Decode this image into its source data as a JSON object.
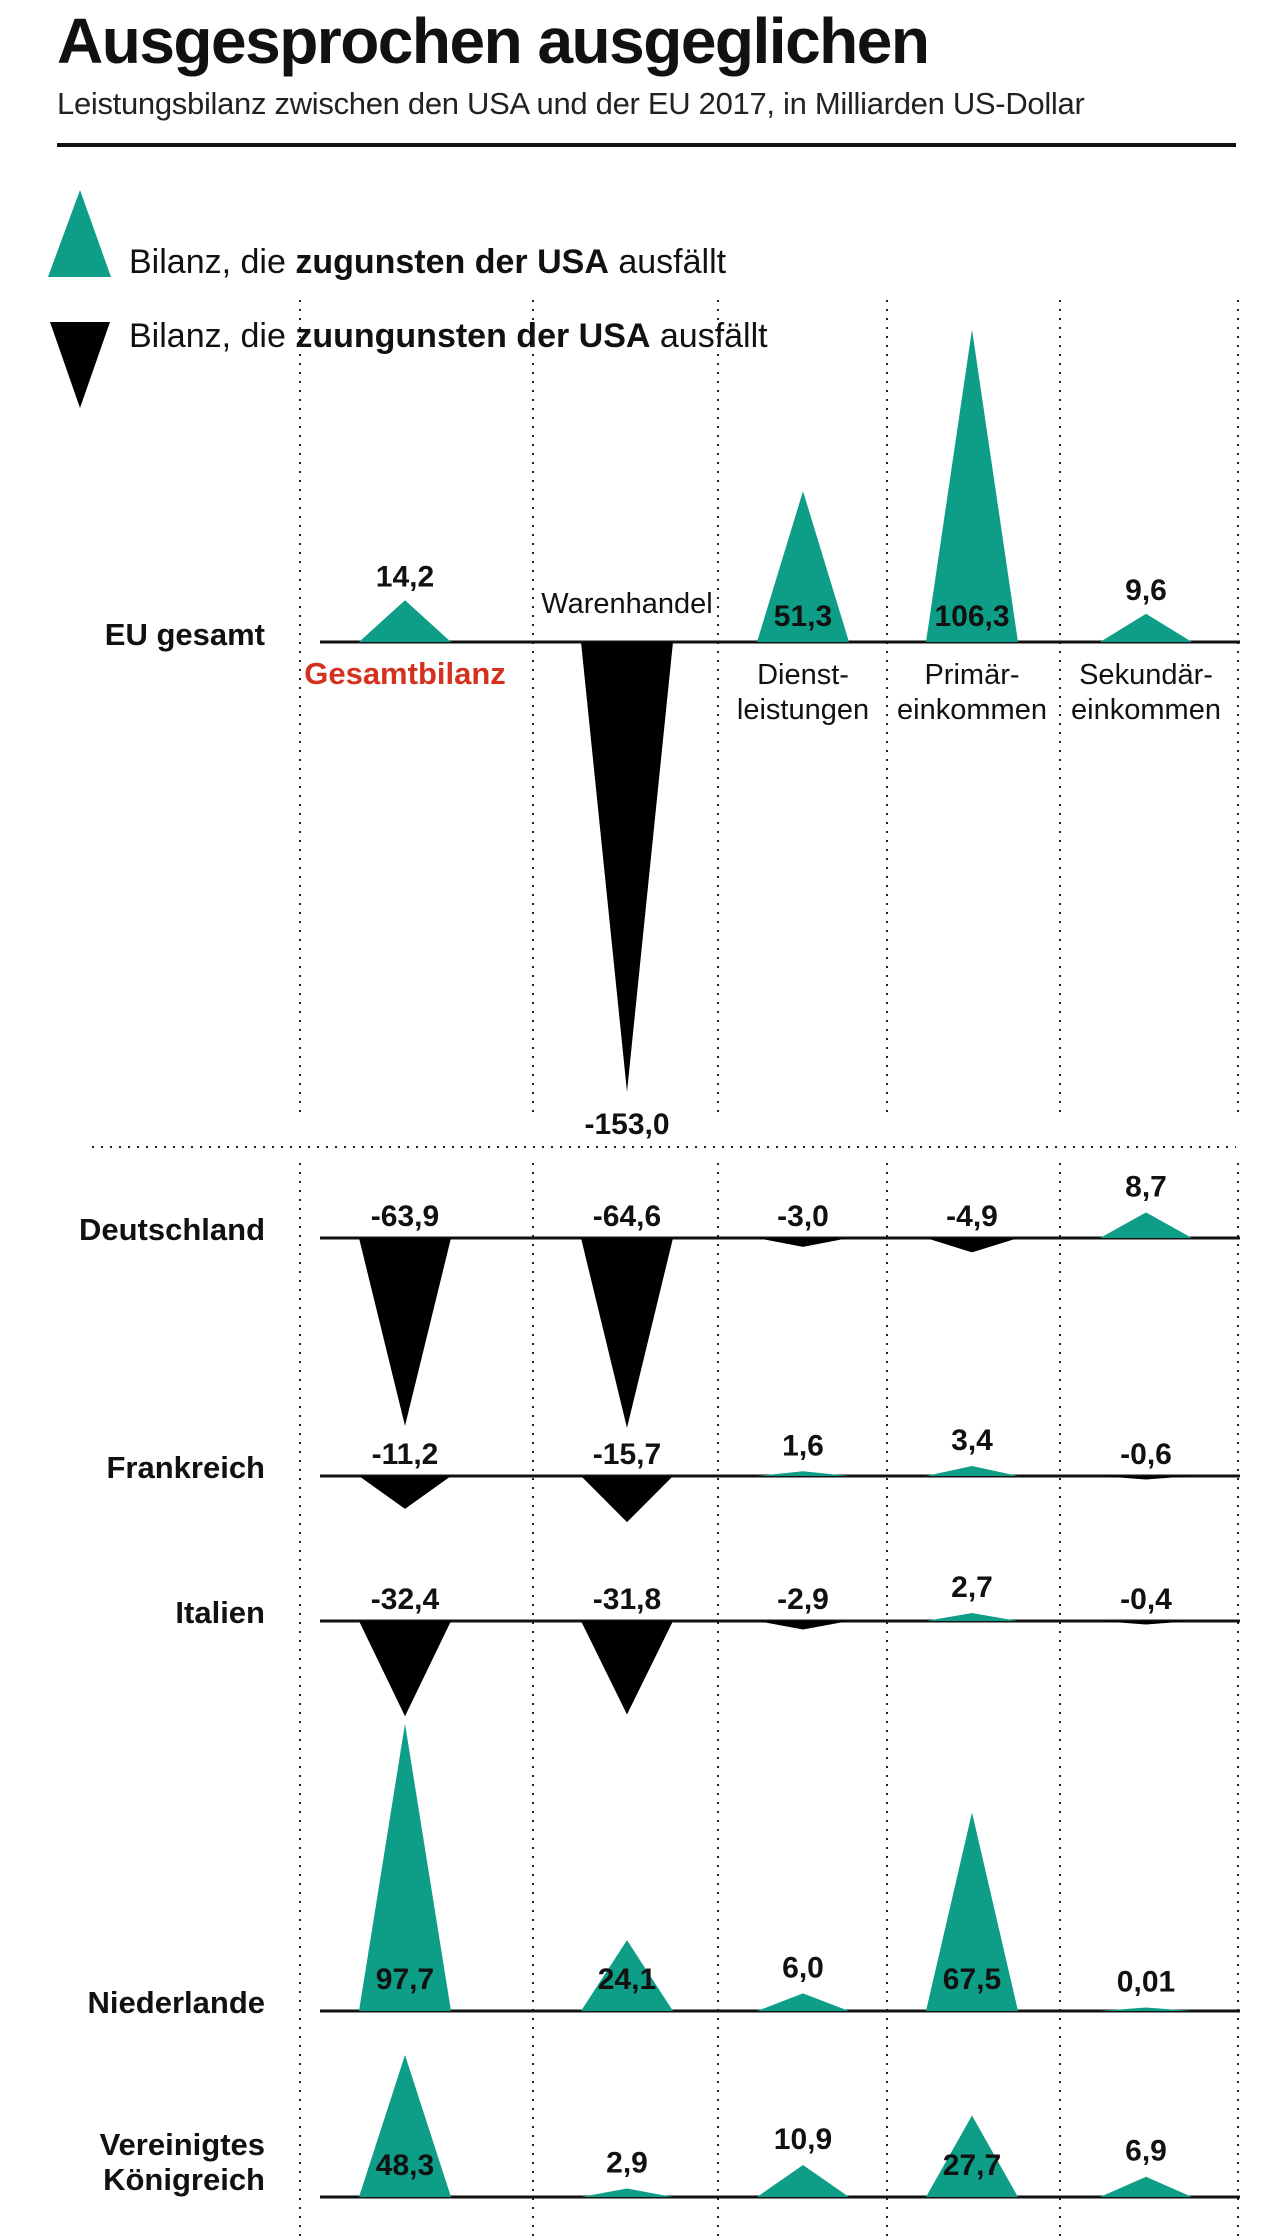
{
  "header": {
    "title": "Ausgesprochen ausgeglichen",
    "subtitle": "Leistungsbilanz zwischen den USA und der EU 2017, in Milliarden US-Dollar"
  },
  "legend": {
    "positive": {
      "prefix": "Bilanz, die ",
      "bold": "zugunsten der USA",
      "suffix": " ausfällt"
    },
    "negative": {
      "prefix": "Bilanz, die ",
      "bold": "zuungunsten der USA",
      "suffix": " ausfällt"
    }
  },
  "colors": {
    "positive": "#0e9d86",
    "negative": "#000000",
    "highlight": "#d4321e"
  },
  "chart_data": {
    "type": "triangle-bar",
    "categories": [
      "Gesamtbilanz",
      "Warenhandel",
      "Dienstleistungen",
      "Primäreinkommen",
      "Sekundäreinkommen"
    ],
    "category_labels": {
      "Gesamtbilanz": [
        "Gesamtbilanz"
      ],
      "Warenhandel": [
        "Warenhandel"
      ],
      "Dienstleistungen": [
        "Dienst-",
        "leistungen"
      ],
      "Primäreinkommen": [
        "Primär-",
        "einkommen"
      ],
      "Sekundäreinkommen": [
        "Sekundär-",
        "einkommen"
      ]
    },
    "rows": [
      {
        "name": "EU gesamt",
        "values": [
          14.2,
          -153.0,
          51.3,
          106.3,
          9.6
        ],
        "labels": [
          "14,2",
          "-153,0",
          "51,3",
          "106,3",
          "9,6"
        ]
      },
      {
        "name": "Deutschland",
        "values": [
          -63.9,
          -64.6,
          -3.0,
          -4.9,
          8.7
        ],
        "labels": [
          "-63,9",
          "-64,6",
          "-3,0",
          "-4,9",
          "8,7"
        ]
      },
      {
        "name": "Frankreich",
        "values": [
          -11.2,
          -15.7,
          1.6,
          3.4,
          -0.6
        ],
        "labels": [
          "-11,2",
          "-15,7",
          "1,6",
          "3,4",
          "-0,6"
        ]
      },
      {
        "name": "Italien",
        "values": [
          -32.4,
          -31.8,
          -2.9,
          2.7,
          -0.4
        ],
        "labels": [
          "-32,4",
          "-31,8",
          "-2,9",
          "2,7",
          "-0,4"
        ]
      },
      {
        "name": "Niederlande",
        "values": [
          97.7,
          24.1,
          6.0,
          67.5,
          0.01
        ],
        "labels": [
          "97,7",
          "24,1",
          "6,0",
          "67,5",
          "0,01"
        ]
      },
      {
        "name": "Vereinigtes Königreich",
        "values": [
          48.3,
          2.9,
          10.9,
          27.7,
          6.9
        ],
        "labels": [
          "48,3",
          "2,9",
          "10,9",
          "27,7",
          "6,9"
        ]
      }
    ],
    "unit": "Milliarden US-Dollar"
  }
}
